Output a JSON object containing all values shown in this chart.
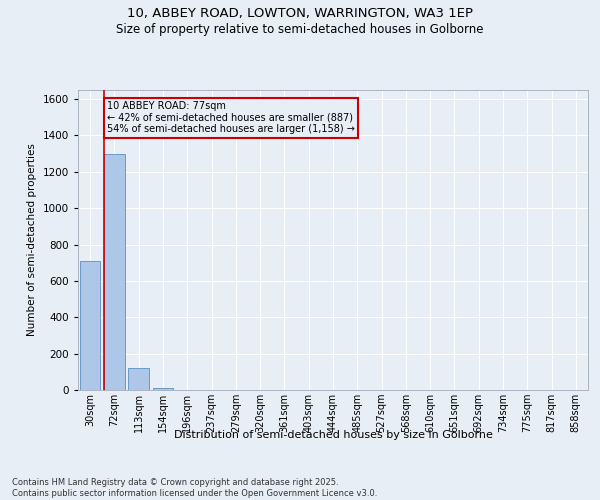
{
  "title_line1": "10, ABBEY ROAD, LOWTON, WARRINGTON, WA3 1EP",
  "title_line2": "Size of property relative to semi-detached houses in Golborne",
  "xlabel": "Distribution of semi-detached houses by size in Golborne",
  "ylabel": "Number of semi-detached properties",
  "categories": [
    "30sqm",
    "72sqm",
    "113sqm",
    "154sqm",
    "196sqm",
    "237sqm",
    "279sqm",
    "320sqm",
    "361sqm",
    "403sqm",
    "444sqm",
    "485sqm",
    "527sqm",
    "568sqm",
    "610sqm",
    "651sqm",
    "692sqm",
    "734sqm",
    "775sqm",
    "817sqm",
    "858sqm"
  ],
  "values": [
    710,
    1300,
    120,
    10,
    0,
    0,
    0,
    0,
    0,
    0,
    0,
    0,
    0,
    0,
    0,
    0,
    0,
    0,
    0,
    0,
    0
  ],
  "bar_color": "#aec6e8",
  "bar_edge_color": "#5a8fc2",
  "property_bin_index": 1,
  "property_label": "10 ABBEY ROAD: 77sqm",
  "annotation_line1": "← 42% of semi-detached houses are smaller (887)",
  "annotation_line2": "54% of semi-detached houses are larger (1,158) →",
  "vline_color": "#cc0000",
  "box_edge_color": "#cc0000",
  "ylim": [
    0,
    1650
  ],
  "yticks": [
    0,
    200,
    400,
    600,
    800,
    1000,
    1200,
    1400,
    1600
  ],
  "background_color": "#e8eef6",
  "grid_color": "#ffffff",
  "footer_line1": "Contains HM Land Registry data © Crown copyright and database right 2025.",
  "footer_line2": "Contains public sector information licensed under the Open Government Licence v3.0."
}
